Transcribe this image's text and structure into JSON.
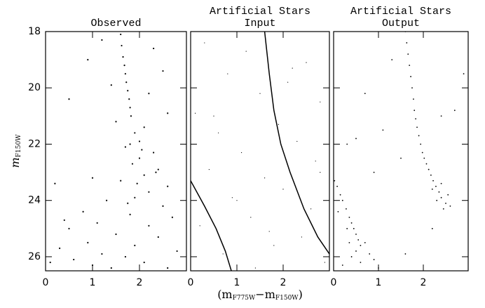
{
  "chart_data": [
    {
      "type": "scatter",
      "title": [
        "Observed"
      ],
      "ylabel": {
        "main": "m",
        "sub": "F150W"
      },
      "xlim": [
        0,
        3
      ],
      "ylim": [
        18,
        26.5
      ],
      "y_inverted": true,
      "xticks": [
        0,
        1,
        2
      ],
      "yticks": [
        18,
        20,
        22,
        24,
        26
      ],
      "show_ytick_labels": true,
      "color": "#000000",
      "marker_size": 1.1,
      "x": [
        1.6,
        1.62,
        1.65,
        1.68,
        1.7,
        1.72,
        1.75,
        1.78,
        1.8,
        1.82,
        1.2,
        2.3,
        0.9,
        2.5,
        1.4,
        2.2,
        0.5,
        2.6,
        1.5,
        2.1,
        1.9,
        2.0,
        1.7,
        2.3,
        2.0,
        1.85,
        2.4,
        2.1,
        1.6,
        1.0,
        2.6,
        2.2,
        1.9,
        0.2,
        1.3,
        2.5,
        0.8,
        1.8,
        2.7,
        1.1,
        2.2,
        0.5,
        1.5,
        2.4,
        0.9,
        1.9,
        0.3,
        2.8,
        1.2,
        1.7,
        0.6,
        2.1,
        1.0,
        1.4,
        0.1,
        2.6,
        1.8,
        2.05,
        1.95,
        2.35,
        1.75,
        0.4
      ],
      "y": [
        18.1,
        18.5,
        18.9,
        19.2,
        19.5,
        19.8,
        20.1,
        20.4,
        20.7,
        21.0,
        18.3,
        18.6,
        19.0,
        19.4,
        19.9,
        20.2,
        20.4,
        20.9,
        21.2,
        21.4,
        21.6,
        21.9,
        22.1,
        22.3,
        22.5,
        22.7,
        22.9,
        23.1,
        23.3,
        23.2,
        23.5,
        23.7,
        23.9,
        23.4,
        24.0,
        24.2,
        24.4,
        24.5,
        24.6,
        24.8,
        24.9,
        25.0,
        25.2,
        25.3,
        25.5,
        25.6,
        25.7,
        25.8,
        25.9,
        26.0,
        26.1,
        26.2,
        26.3,
        26.4,
        26.2,
        26.4,
        22.0,
        22.2,
        23.4,
        23.0,
        24.1,
        24.7
      ]
    },
    {
      "type": "scatter",
      "title": [
        "Artificial Stars",
        "Input"
      ],
      "xlabel": [
        "(m",
        "F775W",
        "−m",
        "F150W",
        ")"
      ],
      "xlim": [
        0,
        3
      ],
      "ylim": [
        18,
        26.5
      ],
      "y_inverted": true,
      "xticks": [
        0,
        1,
        2
      ],
      "yticks": [
        18,
        20,
        22,
        24,
        26
      ],
      "show_ytick_labels": false,
      "color": "#000000",
      "marker_size": 0.6,
      "x": [
        0.3,
        1.2,
        2.5,
        0.8,
        2.1,
        1.5,
        2.8,
        0.1,
        1.9,
        0.6,
        2.3,
        1.1,
        2.7,
        0.4,
        1.6,
        2.0,
        0.9,
        2.6,
        1.3,
        0.2,
        2.4,
        1.8,
        0.7,
        2.9,
        1.4,
        0.5,
        2.2,
        1.0,
        2.8,
        1.7
      ],
      "y": [
        18.4,
        18.7,
        19.1,
        19.5,
        19.8,
        20.2,
        20.5,
        20.9,
        21.3,
        21.6,
        21.9,
        22.3,
        22.6,
        22.9,
        23.2,
        23.6,
        23.9,
        24.3,
        24.6,
        24.9,
        25.3,
        25.6,
        25.9,
        26.2,
        26.4,
        21.0,
        19.3,
        24.0,
        23.0,
        25.1
      ],
      "lines": [
        {
          "x": [
            1.6,
            1.7,
            1.8,
            1.95,
            2.15,
            2.45,
            2.75,
            3.0
          ],
          "y": [
            18,
            19.5,
            20.8,
            22,
            23,
            24.3,
            25.3,
            25.9
          ]
        },
        {
          "x": [
            0,
            0.3,
            0.55,
            0.75,
            0.88
          ],
          "y": [
            23.3,
            24.2,
            25.0,
            25.8,
            26.5
          ]
        }
      ]
    },
    {
      "type": "scatter",
      "title": [
        "Artificial Stars",
        "Output"
      ],
      "xlim": [
        0,
        3
      ],
      "ylim": [
        18,
        26.5
      ],
      "y_inverted": true,
      "xticks": [
        0,
        1,
        2
      ],
      "yticks": [
        18,
        20,
        22,
        24,
        26
      ],
      "show_ytick_labels": false,
      "color": "#000000",
      "marker_size": 0.9,
      "x": [
        1.6,
        1.63,
        1.66,
        1.69,
        1.72,
        1.75,
        1.78,
        1.8,
        1.83,
        1.86,
        1.9,
        1.94,
        1.98,
        2.02,
        2.07,
        2.12,
        2.17,
        2.22,
        2.28,
        2.2,
        2.35,
        2.4,
        2.3,
        2.5,
        2.45,
        2.55,
        2.6,
        2.4,
        0.02,
        0.08,
        0.15,
        0.2,
        0.28,
        0.35,
        0.4,
        0.45,
        0.5,
        0.55,
        0.6,
        0.1,
        0.3,
        0.5,
        0.7,
        0.4,
        0.6,
        0.8,
        0.2,
        0.9,
        0.35,
        1.0,
        1.3,
        2.9,
        0.7,
        2.7,
        1.1,
        0.3,
        2.4,
        1.5,
        0.9,
        2.2,
        1.6,
        0.5
      ],
      "y": [
        18.0,
        18.4,
        18.8,
        19.2,
        19.6,
        20.0,
        20.4,
        20.8,
        21.1,
        21.4,
        21.7,
        22.0,
        22.3,
        22.5,
        22.7,
        22.9,
        23.1,
        23.3,
        23.5,
        23.6,
        23.7,
        23.9,
        24.0,
        24.1,
        24.3,
        23.8,
        24.2,
        23.4,
        23.3,
        23.5,
        23.8,
        24.0,
        24.3,
        24.6,
        24.8,
        25.0,
        25.2,
        25.4,
        25.6,
        24.4,
        25.0,
        25.8,
        25.5,
        26.0,
        26.2,
        25.9,
        26.3,
        26.1,
        25.5,
        26.4,
        19.0,
        19.5,
        20.2,
        20.8,
        21.5,
        22.0,
        21.0,
        22.5,
        23.0,
        25.0,
        25.9,
        21.8
      ]
    }
  ]
}
